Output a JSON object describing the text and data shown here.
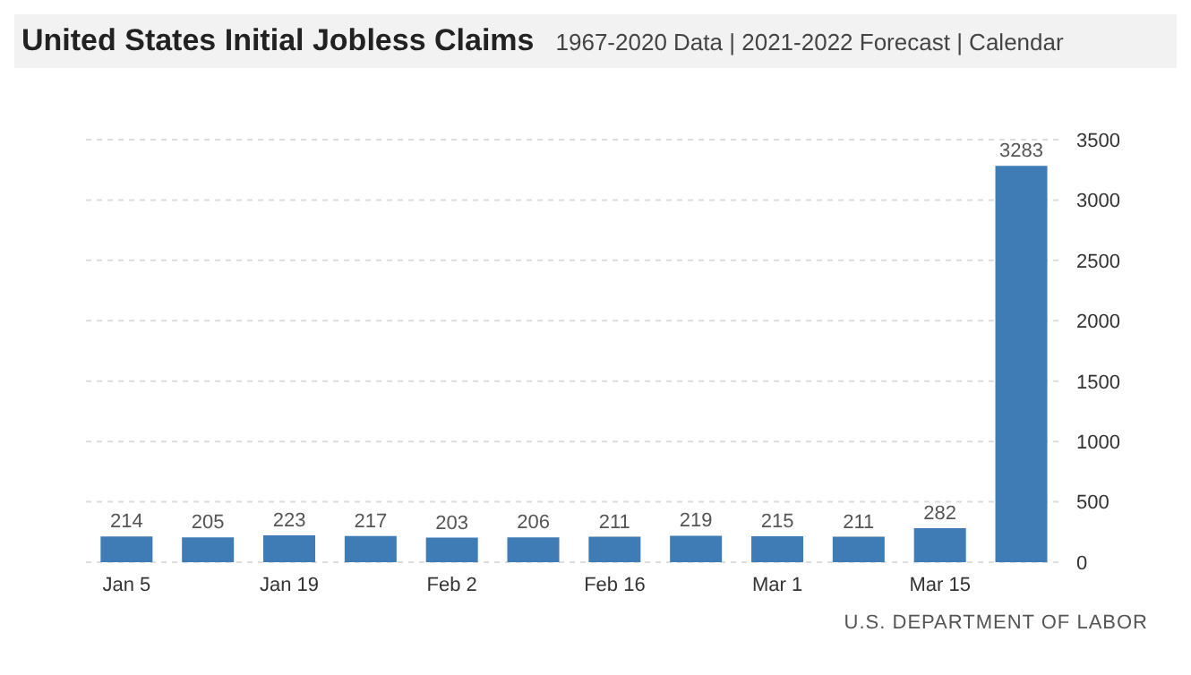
{
  "chart_data": {
    "type": "bar",
    "title": "United States Initial Jobless Claims",
    "subtitle": "1967-2020 Data | 2021-2022 Forecast | Calendar",
    "categories": [
      "Jan 5",
      null,
      "Jan 19",
      null,
      "Feb 2",
      null,
      "Feb 16",
      null,
      "Mar 1",
      null,
      "Mar 15",
      null
    ],
    "values": [
      214,
      205,
      223,
      217,
      203,
      206,
      211,
      219,
      215,
      211,
      282,
      3283
    ],
    "color": "#3f7cb5",
    "ylim": [
      0,
      3500
    ],
    "yticks": [
      0,
      500,
      1000,
      1500,
      2000,
      2500,
      3000,
      3500
    ],
    "grid": "y",
    "data_labels": true,
    "annotations": [
      "U.S. DEPARTMENT OF LABOR"
    ]
  }
}
